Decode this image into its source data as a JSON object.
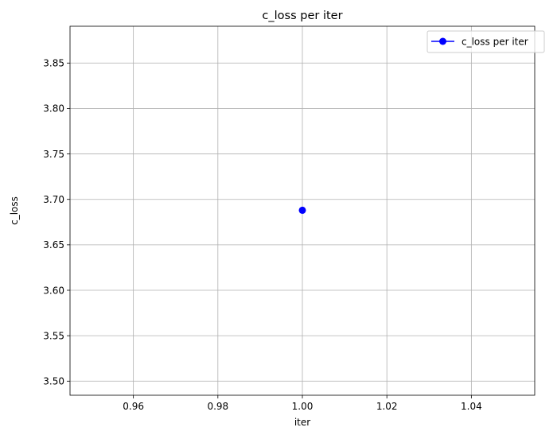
{
  "chart_data": {
    "type": "line",
    "title": "c_loss per iter",
    "xlabel": "iter",
    "ylabel": "c_loss",
    "xlim": [
      0.945,
      1.055
    ],
    "ylim": [
      3.4845,
      3.8905
    ],
    "xticks": [
      0.96,
      0.98,
      1.0,
      1.02,
      1.04
    ],
    "xtick_labels": [
      "0.96",
      "0.98",
      "1.00",
      "1.02",
      "1.04"
    ],
    "yticks": [
      3.5,
      3.55,
      3.6,
      3.65,
      3.7,
      3.75,
      3.8,
      3.85
    ],
    "ytick_labels": [
      "3.50",
      "3.55",
      "3.60",
      "3.65",
      "3.70",
      "3.75",
      "3.80",
      "3.85"
    ],
    "grid": true,
    "legend_position": "top-right",
    "series": [
      {
        "name": "c_loss per iter",
        "color": "#0000ff",
        "marker": "circle",
        "x": [
          1.0
        ],
        "y": [
          3.688
        ]
      }
    ],
    "colors": {
      "grid": "#b0b0b0",
      "axes": "#000000",
      "legend_border": "#cccccc"
    }
  }
}
